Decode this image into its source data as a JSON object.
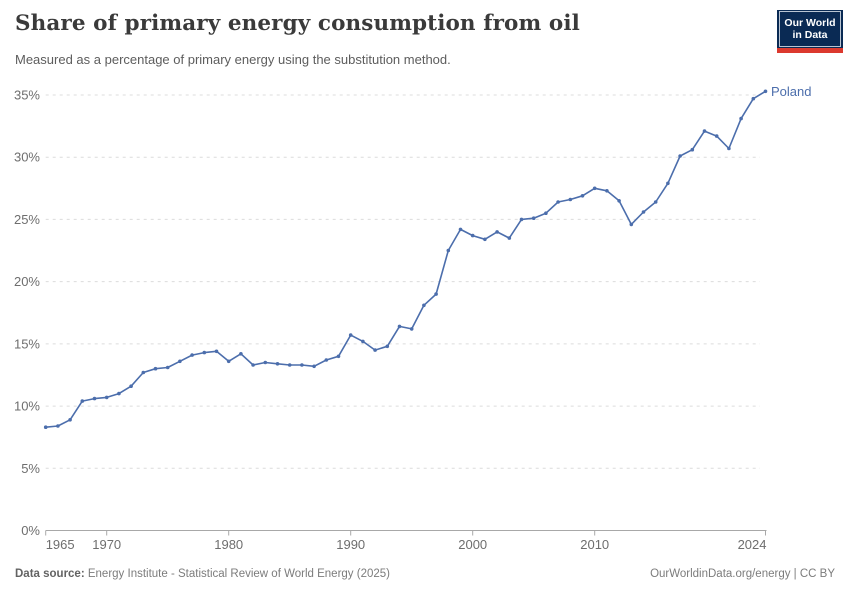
{
  "header": {
    "title": "Share of primary energy consumption from oil",
    "subtitle": "Measured as a percentage of primary energy using the substitution method.",
    "logo": {
      "line1": "Our World",
      "line2": "in Data"
    }
  },
  "footer": {
    "source_label": "Data source:",
    "source_text": " Energy Institute - Statistical Review of World Energy (2025)",
    "credit": "OurWorldinData.org/energy | CC BY"
  },
  "colors": {
    "line": "#4C6EAC",
    "grid": "#DCDCDC",
    "axis": "#A8A8A8",
    "tick_text": "#6E6E6E",
    "logo_bg": "#0A2A54",
    "logo_accent": "#DC392E"
  },
  "chart_data": {
    "type": "line",
    "title": "Share of primary energy consumption from oil",
    "subtitle": "Measured as a percentage of primary energy using the substitution method.",
    "entity_label": "Poland",
    "xlabel": "",
    "ylabel": "",
    "xlim": [
      1965,
      2024
    ],
    "ylim": [
      0,
      35
    ],
    "grid": "horizontal-dashed",
    "legend": "end-of-line-label",
    "ytick_values": [
      0,
      5,
      10,
      15,
      20,
      25,
      30,
      35
    ],
    "ytick_labels": [
      "0%",
      "5%",
      "10%",
      "15%",
      "20%",
      "25%",
      "30%",
      "35%"
    ],
    "xtick_values": [
      1965,
      1970,
      1980,
      1990,
      2000,
      2010,
      2024
    ],
    "xtick_labels": [
      "1965",
      "1970",
      "1980",
      "1990",
      "2000",
      "2010",
      "2024"
    ],
    "series": [
      {
        "name": "Poland",
        "x": [
          1965,
          1966,
          1967,
          1968,
          1969,
          1970,
          1971,
          1972,
          1973,
          1974,
          1975,
          1976,
          1977,
          1978,
          1979,
          1980,
          1981,
          1982,
          1983,
          1984,
          1985,
          1986,
          1987,
          1988,
          1989,
          1990,
          1991,
          1992,
          1993,
          1994,
          1995,
          1996,
          1997,
          1998,
          1999,
          2000,
          2001,
          2002,
          2003,
          2004,
          2005,
          2006,
          2007,
          2008,
          2009,
          2010,
          2011,
          2012,
          2013,
          2014,
          2015,
          2016,
          2017,
          2018,
          2019,
          2020,
          2021,
          2022,
          2023,
          2024
        ],
        "values": [
          8.3,
          8.4,
          8.9,
          10.4,
          10.6,
          10.7,
          11.0,
          11.6,
          12.7,
          13.0,
          13.1,
          13.6,
          14.1,
          14.3,
          14.4,
          13.6,
          14.2,
          13.3,
          13.5,
          13.4,
          13.3,
          13.3,
          13.2,
          13.7,
          14.0,
          15.7,
          15.2,
          14.5,
          14.8,
          16.4,
          16.2,
          18.1,
          19.0,
          22.5,
          24.2,
          23.7,
          23.4,
          24.0,
          23.5,
          25.0,
          25.1,
          25.5,
          26.4,
          26.6,
          26.9,
          27.5,
          27.3,
          26.5,
          24.6,
          25.6,
          26.4,
          27.9,
          30.1,
          30.6,
          32.1,
          31.7,
          30.7,
          33.1,
          34.7,
          35.3
        ]
      }
    ]
  }
}
